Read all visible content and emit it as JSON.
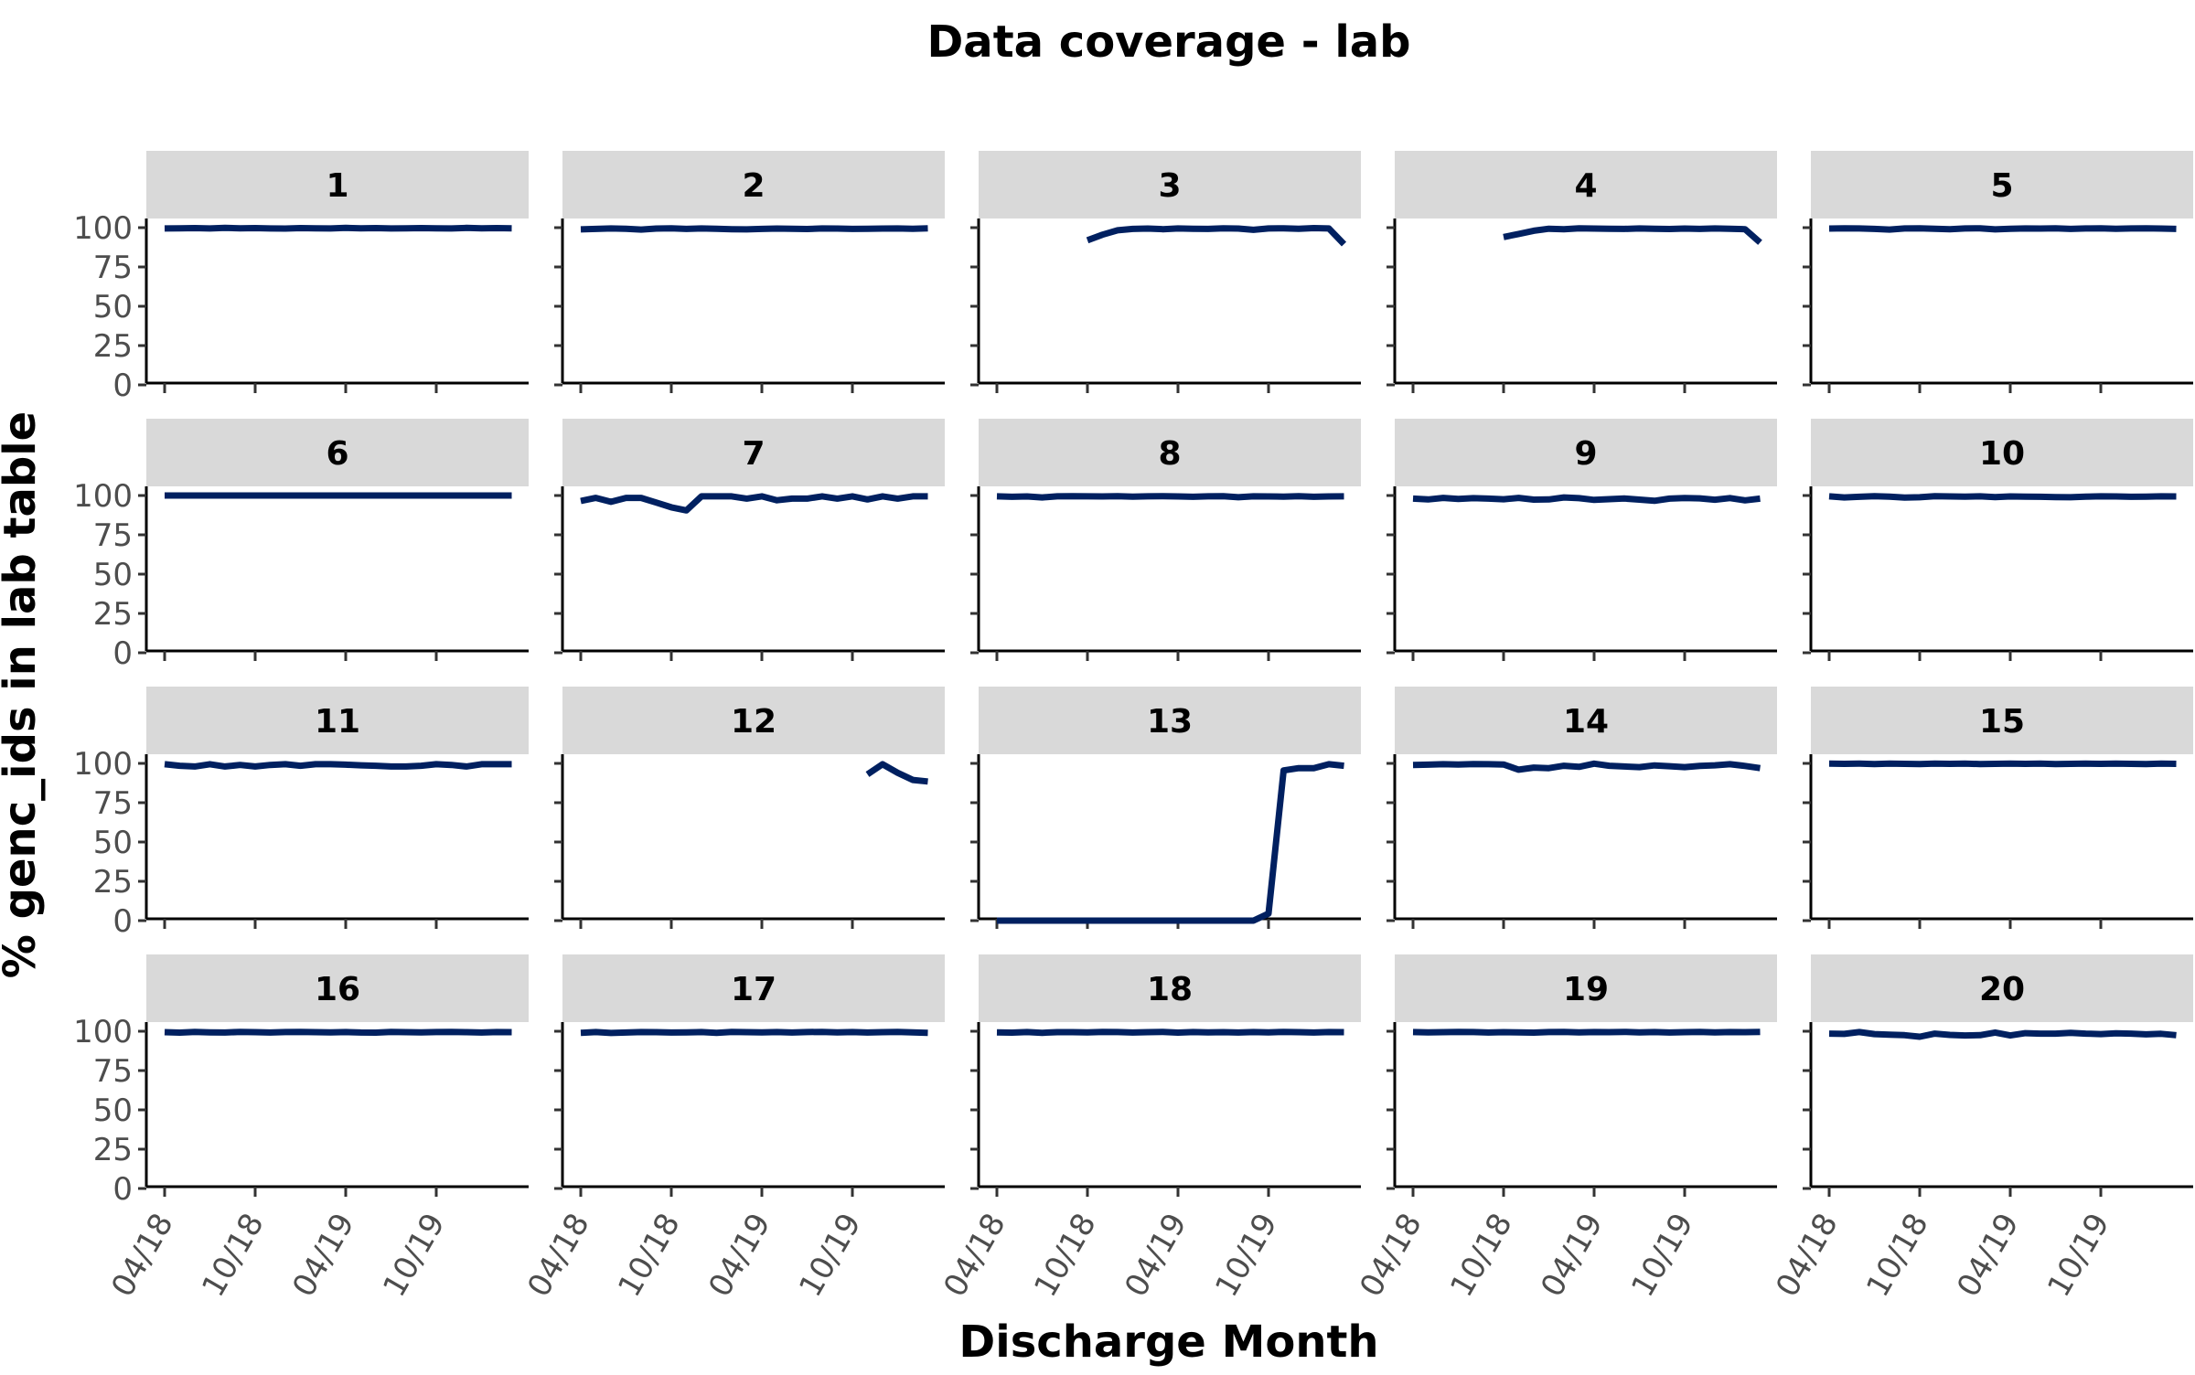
{
  "chart_data": {
    "type": "line",
    "title": "Data coverage - lab",
    "xlabel": "Discharge Month",
    "ylabel": "% genc_ids in lab table",
    "facet_layout": "5 columns x 4 rows",
    "y_ticks": [
      "0",
      "25",
      "50",
      "75",
      "100"
    ],
    "ylim": [
      0,
      100
    ],
    "x_ticks": [
      "04/18",
      "10/18",
      "04/19",
      "10/19"
    ],
    "xlim": [
      "04/18",
      "03/20"
    ],
    "line_color": "#002060",
    "strip_color": "#d9d9d9",
    "grid": false,
    "x": [
      "04/18",
      "05/18",
      "06/18",
      "07/18",
      "08/18",
      "09/18",
      "10/18",
      "11/18",
      "12/18",
      "01/19",
      "02/19",
      "03/19",
      "04/19",
      "05/19",
      "06/19",
      "07/19",
      "08/19",
      "09/19",
      "10/19",
      "11/19",
      "12/19",
      "01/20",
      "02/20",
      "03/20"
    ],
    "series": [
      {
        "panel": "1",
        "values": [
          99.5,
          99.6,
          99.7,
          99.5,
          99.8,
          99.6,
          99.7,
          99.5,
          99.4,
          99.7,
          99.6,
          99.5,
          99.8,
          99.6,
          99.7,
          99.5,
          99.6,
          99.7,
          99.6,
          99.5,
          99.8,
          99.6,
          99.7,
          99.6
        ]
      },
      {
        "panel": "2",
        "values": [
          98.9,
          99.2,
          99.5,
          99.3,
          98.8,
          99.4,
          99.6,
          99.2,
          99.5,
          99.3,
          99.0,
          98.9,
          99.2,
          99.4,
          99.3,
          99.1,
          99.5,
          99.4,
          99.2,
          99.3,
          99.4,
          99.5,
          99.3,
          99.6
        ]
      },
      {
        "panel": "3",
        "values": [
          null,
          null,
          null,
          null,
          null,
          null,
          92.0,
          95.5,
          98.3,
          99.2,
          99.4,
          99.0,
          99.5,
          99.3,
          99.2,
          99.6,
          99.4,
          98.6,
          99.5,
          99.6,
          99.3,
          99.7,
          99.5,
          89.5
        ]
      },
      {
        "panel": "4",
        "values": [
          null,
          null,
          null,
          null,
          null,
          null,
          94.0,
          96.0,
          98.0,
          99.3,
          99.0,
          99.6,
          99.4,
          99.3,
          99.2,
          99.5,
          99.3,
          99.1,
          99.4,
          99.2,
          99.5,
          99.3,
          99.0,
          90.5
        ]
      },
      {
        "panel": "5",
        "values": [
          99.4,
          99.6,
          99.5,
          99.2,
          98.8,
          99.5,
          99.6,
          99.3,
          99.0,
          99.5,
          99.6,
          98.9,
          99.3,
          99.5,
          99.4,
          99.6,
          99.2,
          99.5,
          99.6,
          99.3,
          99.5,
          99.6,
          99.4,
          99.2
        ]
      },
      {
        "panel": "6",
        "values": [
          100,
          100,
          100,
          100,
          100,
          100,
          100,
          100,
          100,
          100,
          100,
          100,
          100,
          100,
          100,
          100,
          100,
          100,
          100,
          100,
          100,
          100,
          100,
          100
        ]
      },
      {
        "panel": "7",
        "values": [
          96.5,
          98.5,
          96.0,
          98.5,
          98.5,
          95.5,
          92.5,
          90.5,
          99.5,
          99.5,
          99.5,
          98.0,
          99.5,
          97.0,
          98.0,
          98.0,
          99.5,
          98.0,
          99.5,
          97.5,
          99.5,
          98.0,
          99.5,
          99.5
        ]
      },
      {
        "panel": "8",
        "values": [
          99.5,
          99.2,
          99.4,
          98.8,
          99.5,
          99.6,
          99.5,
          99.4,
          99.6,
          99.3,
          99.5,
          99.6,
          99.4,
          99.2,
          99.5,
          99.6,
          98.9,
          99.5,
          99.4,
          99.3,
          99.6,
          99.2,
          99.4,
          99.5
        ]
      },
      {
        "panel": "9",
        "values": [
          98.0,
          97.5,
          98.5,
          97.8,
          98.3,
          98.0,
          97.6,
          98.5,
          97.4,
          97.5,
          98.8,
          98.3,
          97.2,
          97.7,
          98.1,
          97.4,
          96.6,
          98.0,
          98.4,
          98.2,
          97.3,
          98.4,
          96.9,
          98.0
        ]
      },
      {
        "panel": "10",
        "values": [
          99.5,
          98.8,
          99.2,
          99.6,
          99.3,
          98.7,
          98.9,
          99.6,
          99.4,
          99.3,
          99.5,
          99.0,
          99.4,
          99.3,
          99.2,
          99.0,
          98.9,
          99.3,
          99.5,
          99.4,
          99.2,
          99.3,
          99.5,
          99.4
        ]
      },
      {
        "panel": "11",
        "values": [
          99.5,
          98.5,
          98.0,
          99.5,
          98.0,
          99.0,
          98.0,
          99.0,
          99.5,
          98.5,
          99.5,
          99.5,
          99.2,
          98.8,
          98.5,
          98.0,
          98.0,
          98.5,
          99.5,
          99.0,
          98.0,
          99.5,
          99.5,
          99.5
        ]
      },
      {
        "panel": "12",
        "values": [
          null,
          null,
          null,
          null,
          null,
          null,
          null,
          null,
          null,
          null,
          null,
          null,
          null,
          null,
          null,
          null,
          null,
          null,
          null,
          93.0,
          99.5,
          94.0,
          89.5,
          88.5
        ]
      },
      {
        "panel": "13",
        "values": [
          0.0,
          0.0,
          0.0,
          0.0,
          0.0,
          0.0,
          0.0,
          0.0,
          0.0,
          0.0,
          0.0,
          0.0,
          0.0,
          0.0,
          0.0,
          0.0,
          0.0,
          0.0,
          4.5,
          95.5,
          97.0,
          97.0,
          99.5,
          98.5
        ]
      },
      {
        "panel": "14",
        "values": [
          99.0,
          99.2,
          99.5,
          99.3,
          99.6,
          99.5,
          99.3,
          96.0,
          97.3,
          97.0,
          98.5,
          97.8,
          99.8,
          98.5,
          98.0,
          97.6,
          98.7,
          98.2,
          97.6,
          98.4,
          98.8,
          99.5,
          98.4,
          97.0
        ]
      },
      {
        "panel": "15",
        "values": [
          99.8,
          99.7,
          99.8,
          99.6,
          99.8,
          99.7,
          99.6,
          99.8,
          99.7,
          99.8,
          99.6,
          99.7,
          99.8,
          99.7,
          99.8,
          99.6,
          99.7,
          99.8,
          99.7,
          99.8,
          99.7,
          99.6,
          99.8,
          99.7
        ]
      },
      {
        "panel": "16",
        "values": [
          99.4,
          99.1,
          99.6,
          99.3,
          99.2,
          99.6,
          99.4,
          99.2,
          99.5,
          99.6,
          99.4,
          99.3,
          99.5,
          99.2,
          99.1,
          99.6,
          99.4,
          99.3,
          99.5,
          99.6,
          99.4,
          99.2,
          99.5,
          99.4
        ]
      },
      {
        "panel": "17",
        "values": [
          99.0,
          99.5,
          98.9,
          99.2,
          99.5,
          99.4,
          99.2,
          99.3,
          99.5,
          99.0,
          99.6,
          99.4,
          99.3,
          99.5,
          99.2,
          99.5,
          99.6,
          99.3,
          99.5,
          99.2,
          99.4,
          99.6,
          99.3,
          99.0
        ]
      },
      {
        "panel": "18",
        "values": [
          99.3,
          99.1,
          99.5,
          99.0,
          99.4,
          99.4,
          99.3,
          99.6,
          99.5,
          99.2,
          99.4,
          99.6,
          99.1,
          99.5,
          99.3,
          99.4,
          99.2,
          99.5,
          99.3,
          99.6,
          99.4,
          99.2,
          99.5,
          99.4
        ]
      },
      {
        "panel": "19",
        "values": [
          99.5,
          99.3,
          99.4,
          99.6,
          99.5,
          99.2,
          99.4,
          99.3,
          99.1,
          99.5,
          99.6,
          99.3,
          99.5,
          99.4,
          99.6,
          99.3,
          99.5,
          99.2,
          99.4,
          99.6,
          99.3,
          99.5,
          99.4,
          99.6
        ]
      },
      {
        "panel": "20",
        "values": [
          98.5,
          98.3,
          99.5,
          98.2,
          97.8,
          97.5,
          96.5,
          98.5,
          97.7,
          97.3,
          97.5,
          99.2,
          97.3,
          98.8,
          98.5,
          98.5,
          99.0,
          98.5,
          98.2,
          98.7,
          98.5,
          98.0,
          98.4,
          97.5
        ]
      }
    ]
  }
}
